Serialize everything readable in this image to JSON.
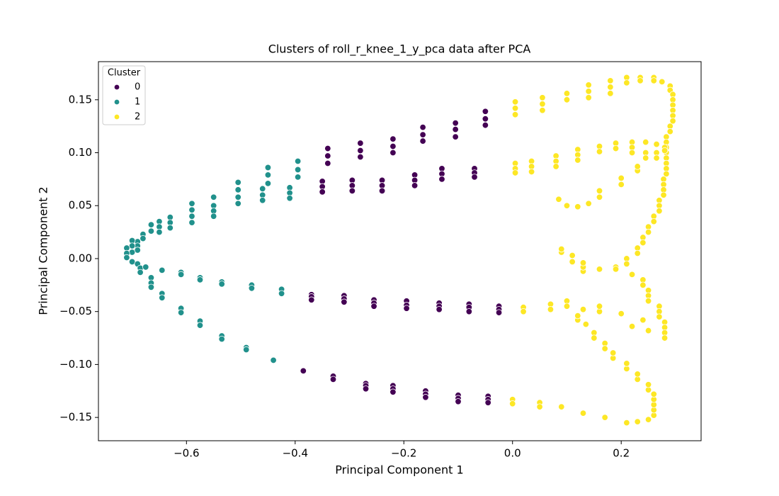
{
  "chart_data": {
    "type": "scatter",
    "title": "Clusters of roll_r_knee_1_y_pca data after PCA",
    "x_label": "Principal Component 1",
    "y_label": "Principal Component 2",
    "legend_title": "Cluster",
    "legend_position": "upper left",
    "grid": false,
    "xlim": [
      -0.762,
      0.347
    ],
    "ylim": [
      -0.172,
      0.186
    ],
    "xticks": [
      {
        "value": -0.6,
        "label": "−0.6"
      },
      {
        "value": -0.4,
        "label": "−0.4"
      },
      {
        "value": -0.2,
        "label": "−0.2"
      },
      {
        "value": 0,
        "label": "0.0"
      },
      0.2
    ],
    "yticks": [
      {
        "value": -0.15,
        "label": "−0.15"
      },
      {
        "value": -0.1,
        "label": "−0.10"
      },
      {
        "value": -0.05,
        "label": "−0.05"
      },
      {
        "value": 0,
        "label": "0.00"
      },
      0.05,
      {
        "value": 0.1,
        "label": "0.10"
      },
      0.15
    ],
    "series": [
      {
        "name": "0",
        "color": "#440154",
        "x": [
          -0.05,
          -0.05,
          -0.05,
          -0.105,
          -0.105,
          -0.105,
          -0.165,
          -0.165,
          -0.165,
          -0.22,
          -0.22,
          -0.22,
          -0.28,
          -0.28,
          -0.28,
          -0.34,
          -0.34,
          -0.34,
          -0.07,
          -0.07,
          -0.07,
          -0.13,
          -0.13,
          -0.13,
          -0.18,
          -0.18,
          -0.18,
          -0.24,
          -0.24,
          -0.24,
          -0.295,
          -0.295,
          -0.295,
          -0.35,
          -0.35,
          -0.35,
          -0.025,
          -0.025,
          -0.025,
          -0.08,
          -0.08,
          -0.08,
          -0.135,
          -0.135,
          -0.135,
          -0.195,
          -0.195,
          -0.195,
          -0.255,
          -0.255,
          -0.255,
          -0.31,
          -0.31,
          -0.31,
          -0.37,
          -0.37,
          -0.37,
          -0.045,
          -0.045,
          -0.045,
          -0.1,
          -0.1,
          -0.1,
          -0.16,
          -0.16,
          -0.16,
          -0.22,
          -0.22,
          -0.22,
          -0.27,
          -0.27,
          -0.27,
          -0.33,
          -0.33,
          -0.385
        ],
        "values": [
          0.139,
          0.132,
          0.126,
          0.128,
          0.122,
          0.115,
          0.124,
          0.117,
          0.111,
          0.113,
          0.106,
          0.1,
          0.109,
          0.102,
          0.096,
          0.104,
          0.097,
          0.09,
          0.085,
          0.081,
          0.077,
          0.085,
          0.08,
          0.075,
          0.079,
          0.074,
          0.069,
          0.074,
          0.069,
          0.064,
          0.074,
          0.069,
          0.064,
          0.073,
          0.068,
          0.063,
          -0.045,
          -0.048,
          -0.051,
          -0.043,
          -0.046,
          -0.05,
          -0.042,
          -0.045,
          -0.048,
          -0.04,
          -0.044,
          -0.047,
          -0.039,
          -0.042,
          -0.045,
          -0.035,
          -0.038,
          -0.041,
          -0.034,
          -0.036,
          -0.039,
          -0.13,
          -0.133,
          -0.136,
          -0.129,
          -0.132,
          -0.135,
          -0.125,
          -0.128,
          -0.131,
          -0.12,
          -0.123,
          -0.126,
          -0.118,
          -0.12,
          -0.123,
          -0.111,
          -0.114,
          -0.106
        ]
      },
      {
        "name": "1",
        "color": "#21918c",
        "x": [
          -0.395,
          -0.395,
          -0.395,
          -0.41,
          -0.41,
          -0.41,
          -0.45,
          -0.45,
          -0.45,
          -0.46,
          -0.46,
          -0.46,
          -0.505,
          -0.505,
          -0.505,
          -0.505,
          -0.55,
          -0.55,
          -0.55,
          -0.55,
          -0.59,
          -0.59,
          -0.59,
          -0.59,
          -0.63,
          -0.63,
          -0.63,
          -0.65,
          -0.65,
          -0.65,
          -0.665,
          -0.665,
          -0.68,
          -0.68,
          -0.69,
          -0.69,
          -0.69,
          -0.7,
          -0.7,
          -0.7,
          -0.71,
          -0.71,
          -0.71,
          -0.7,
          -0.69,
          -0.685,
          -0.685,
          -0.675,
          -0.665,
          -0.665,
          -0.665,
          -0.645,
          -0.645,
          -0.645,
          -0.61,
          -0.61,
          -0.61,
          -0.61,
          -0.575,
          -0.575,
          -0.575,
          -0.575,
          -0.535,
          -0.535,
          -0.535,
          -0.535,
          -0.48,
          -0.48,
          -0.49,
          -0.49,
          -0.44,
          -0.425,
          -0.425
        ],
        "values": [
          0.092,
          0.084,
          0.077,
          0.067,
          0.062,
          0.057,
          0.086,
          0.079,
          0.071,
          0.066,
          0.06,
          0.055,
          0.072,
          0.065,
          0.058,
          0.052,
          0.058,
          0.05,
          0.045,
          0.04,
          0.052,
          0.046,
          0.04,
          0.034,
          0.039,
          0.034,
          0.029,
          0.035,
          0.03,
          0.025,
          0.032,
          0.026,
          0.023,
          0.019,
          0.016,
          0.012,
          0.008,
          0.017,
          0.012,
          0.006,
          0.01,
          0.005,
          0.001,
          -0.003,
          -0.005,
          -0.009,
          -0.013,
          -0.008,
          -0.018,
          -0.023,
          -0.027,
          -0.011,
          -0.033,
          -0.037,
          -0.013,
          -0.015,
          -0.047,
          -0.051,
          -0.018,
          -0.02,
          -0.059,
          -0.063,
          -0.022,
          -0.024,
          -0.073,
          -0.076,
          -0.025,
          -0.028,
          -0.084,
          -0.086,
          -0.096,
          -0.029,
          -0.033
        ]
      },
      {
        "name": "2",
        "color": "#fde725",
        "x": [
          0.005,
          0.005,
          0.005,
          0.055,
          0.055,
          0.055,
          0.1,
          0.1,
          0.14,
          0.14,
          0.14,
          0.18,
          0.18,
          0.18,
          0.21,
          0.21,
          0.235,
          0.235,
          0.26,
          0.26,
          0.275,
          0.29,
          0.29,
          0.295,
          0.295,
          0.295,
          0.295,
          0.295,
          0.295,
          0.29,
          0.29,
          0.283,
          0.283,
          0.283,
          0.283,
          0.283,
          0.283,
          0.283,
          0.283,
          0.278,
          0.278,
          0.278,
          0.278,
          0.27,
          0.27,
          0.27,
          0.26,
          0.26,
          0.25,
          0.25,
          0.24,
          0.24,
          0.23,
          0.23,
          0.21,
          0.21,
          0.19,
          0.16,
          0.13,
          0.13,
          0.13,
          0.11,
          0.11,
          0.09,
          0.09,
          0.005,
          0.005,
          0.005,
          0.035,
          0.035,
          0.035,
          0.08,
          0.08,
          0.08,
          0.12,
          0.12,
          0.12,
          0.16,
          0.16,
          0.19,
          0.19,
          0.22,
          0.22,
          0.22,
          0.245,
          0.245,
          0.245,
          0.265,
          0.265,
          0.265,
          0.28,
          0.28,
          0.085,
          0.1,
          0.12,
          0.14,
          0.16,
          0.16,
          0.2,
          0.2,
          0.23,
          0.23,
          0.02,
          0.02,
          0.07,
          0.07,
          0.1,
          0.1,
          0.13,
          0.16,
          0.16,
          0.2,
          0.24,
          0.28,
          0.28,
          0.28,
          0.28,
          0.27,
          0.27,
          0.27,
          0.25,
          0.25,
          0.25,
          0.24,
          0.24,
          0.22,
          0.19,
          0,
          0,
          0.05,
          0.05,
          0.09,
          0.13,
          0.17,
          0.21,
          0.23,
          0.25,
          0.26,
          0.26,
          0.26,
          0.26,
          0.26,
          0.25,
          0.25,
          0.23,
          0.23,
          0.21,
          0.21,
          0.185,
          0.185,
          0.17,
          0.17,
          0.15,
          0.15,
          0.135,
          0.12,
          0.12,
          0.22,
          0.25
        ],
        "values": [
          0.148,
          0.142,
          0.136,
          0.152,
          0.146,
          0.14,
          0.156,
          0.15,
          0.164,
          0.158,
          0.152,
          0.168,
          0.162,
          0.156,
          0.171,
          0.166,
          0.171,
          0.168,
          0.171,
          0.168,
          0.167,
          0.163,
          0.159,
          0.155,
          0.15,
          0.145,
          0.14,
          0.135,
          0.13,
          0.125,
          0.12,
          0.115,
          0.11,
          0.105,
          0.1,
          0.095,
          0.09,
          0.085,
          0.08,
          0.075,
          0.07,
          0.065,
          0.06,
          0.055,
          0.05,
          0.045,
          0.04,
          0.035,
          0.03,
          0.025,
          0.02,
          0.015,
          0.01,
          0.005,
          0,
          -0.005,
          -0.008,
          -0.01,
          -0.012,
          -0.008,
          -0.004,
          -0.003,
          0.003,
          0.006,
          0.009,
          0.09,
          0.085,
          0.081,
          0.092,
          0.087,
          0.082,
          0.097,
          0.092,
          0.087,
          0.103,
          0.098,
          0.093,
          0.106,
          0.101,
          0.109,
          0.104,
          0.11,
          0.105,
          0.1,
          0.11,
          0.1,
          0.095,
          0.108,
          0.1,
          0.095,
          0.105,
          0.102,
          0.056,
          0.05,
          0.049,
          0.052,
          0.058,
          0.064,
          0.07,
          0.076,
          0.083,
          0.087,
          -0.046,
          -0.05,
          -0.043,
          -0.048,
          -0.04,
          -0.045,
          -0.048,
          -0.05,
          -0.045,
          -0.052,
          -0.058,
          -0.06,
          -0.065,
          -0.07,
          -0.075,
          -0.045,
          -0.05,
          -0.055,
          -0.03,
          -0.035,
          -0.04,
          -0.02,
          -0.025,
          -0.015,
          -0.01,
          -0.133,
          -0.137,
          -0.136,
          -0.14,
          -0.14,
          -0.146,
          -0.15,
          -0.155,
          -0.154,
          -0.152,
          -0.148,
          -0.143,
          -0.138,
          -0.133,
          -0.128,
          -0.124,
          -0.119,
          -0.114,
          -0.109,
          -0.104,
          -0.099,
          -0.094,
          -0.089,
          -0.08,
          -0.085,
          -0.07,
          -0.075,
          -0.062,
          -0.058,
          -0.054,
          -0.064,
          -0.068
        ]
      }
    ]
  }
}
